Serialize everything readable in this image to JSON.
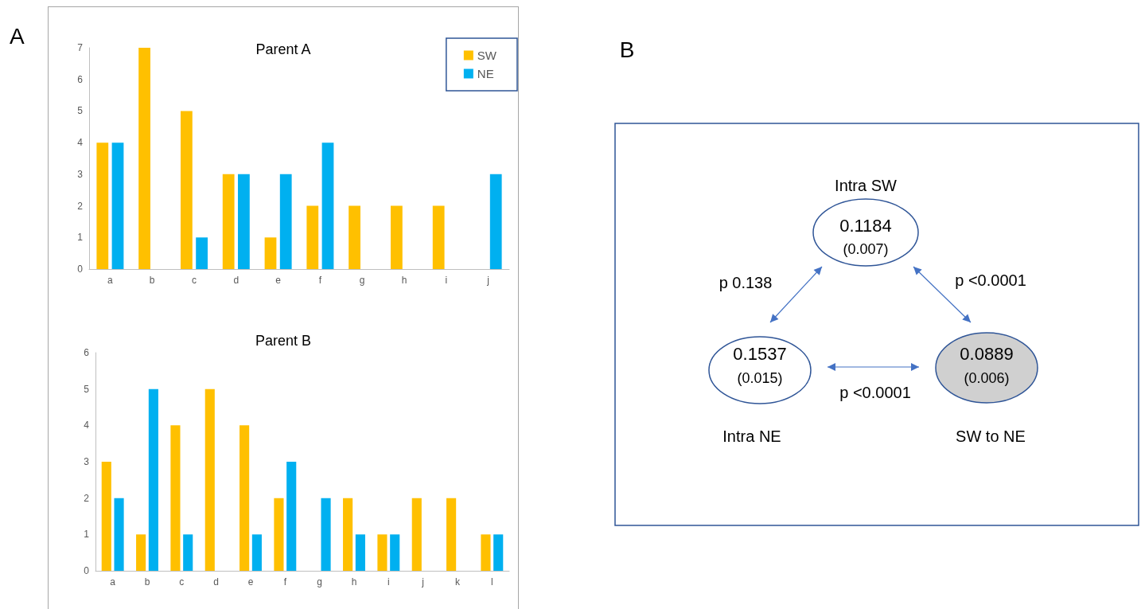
{
  "chart_data": [
    {
      "type": "bar",
      "title": "Parent A",
      "annotations": [
        "A"
      ],
      "categories": [
        "a",
        "b",
        "c",
        "d",
        "e",
        "f",
        "g",
        "h",
        "i",
        "j"
      ],
      "series": [
        {
          "name": "SW",
          "color": "#ffc000",
          "values": [
            4,
            7,
            5,
            3,
            1,
            2,
            2,
            2,
            2,
            0
          ]
        },
        {
          "name": "NE",
          "color": "#00b0f0",
          "values": [
            4,
            0,
            1,
            3,
            3,
            4,
            0,
            0,
            0,
            3
          ]
        }
      ],
      "ylim": [
        0,
        7
      ],
      "yticks": [
        0,
        1,
        2,
        3,
        4,
        5,
        6,
        7
      ],
      "grid": false,
      "legend": "top right"
    },
    {
      "type": "bar",
      "title": "Parent B",
      "categories": [
        "a",
        "b",
        "c",
        "d",
        "e",
        "f",
        "g",
        "h",
        "i",
        "j",
        "k",
        "l"
      ],
      "series": [
        {
          "color": "#ffc000",
          "values": [
            3,
            1,
            4,
            5,
            4,
            2,
            0,
            2,
            1,
            2,
            2,
            1
          ]
        },
        {
          "color": "#00b0f0",
          "values": [
            2,
            5,
            1,
            0,
            1,
            3,
            2,
            1,
            1,
            0,
            0,
            1
          ]
        }
      ],
      "ylim": [
        0,
        6
      ],
      "yticks": [
        0,
        1,
        2,
        3,
        4,
        5,
        6
      ],
      "grid": false,
      "legend": false
    },
    {
      "type": "other",
      "annotations": [
        "B",
        "Intra SW",
        "0.1184",
        "(0.007)",
        "p 0.138",
        "p <0.0001",
        "0.1537",
        "(0.015)",
        "p <0.0001",
        "0.0889",
        "(0.006)",
        "Intra NE",
        "SW to NE"
      ]
    }
  ]
}
